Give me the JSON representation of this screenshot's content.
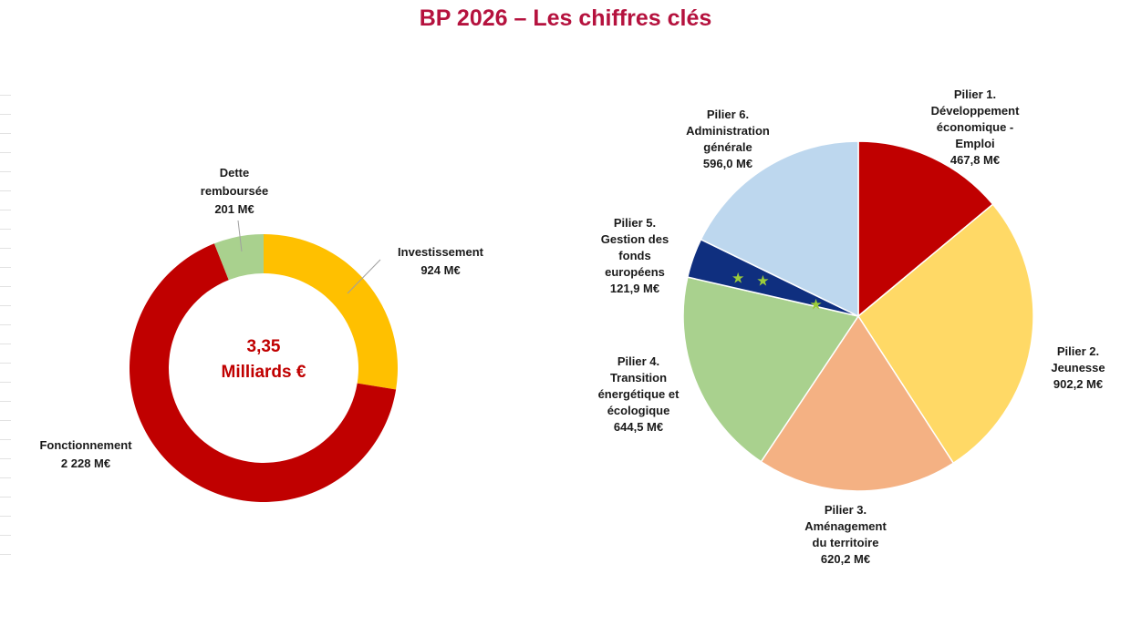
{
  "title": "BP 2026 – Les chiffres clés",
  "chart_data": [
    {
      "type": "pie",
      "variant": "donut",
      "center_text": [
        "3,35",
        "Milliards €"
      ],
      "unit": "M€",
      "slices": [
        {
          "label": [
            "Investissement",
            "924 M€"
          ],
          "value": 924,
          "color": "#ffc000"
        },
        {
          "label": [
            "Fonctionnement",
            "2 228 M€"
          ],
          "value": 2228,
          "color": "#c00000"
        },
        {
          "label": [
            "Dette",
            "remboursée",
            "201 M€"
          ],
          "value": 201,
          "color": "#a9d18e"
        }
      ]
    },
    {
      "type": "pie",
      "unit": "M€",
      "slices": [
        {
          "label": [
            "Pilier 1.",
            "Développement",
            "économique -",
            "Emploi",
            "467,8 M€"
          ],
          "value": 467.8,
          "color": "#c00000"
        },
        {
          "label": [
            "Pilier 2.",
            "Jeunesse",
            "902,2  M€"
          ],
          "value": 902.2,
          "color": "#ffd966"
        },
        {
          "label": [
            "Pilier 3.",
            "Aménagement",
            "du territoire",
            "620,2 M€"
          ],
          "value": 620.2,
          "color": "#f4b183"
        },
        {
          "label": [
            "Pilier 4.",
            "Transition",
            "énergétique et",
            "écologique",
            "644,5 M€"
          ],
          "value": 644.5,
          "color": "#a9d18e"
        },
        {
          "label": [
            "Pilier 5.",
            "Gestion des",
            "fonds",
            "européens",
            "121,9 M€"
          ],
          "value": 121.9,
          "color": "#0f2f7f"
        },
        {
          "label": [
            "Pilier 6.",
            "Administration",
            "générale",
            "596,0 M€"
          ],
          "value": 596.0,
          "color": "#bdd7ee"
        }
      ]
    }
  ]
}
